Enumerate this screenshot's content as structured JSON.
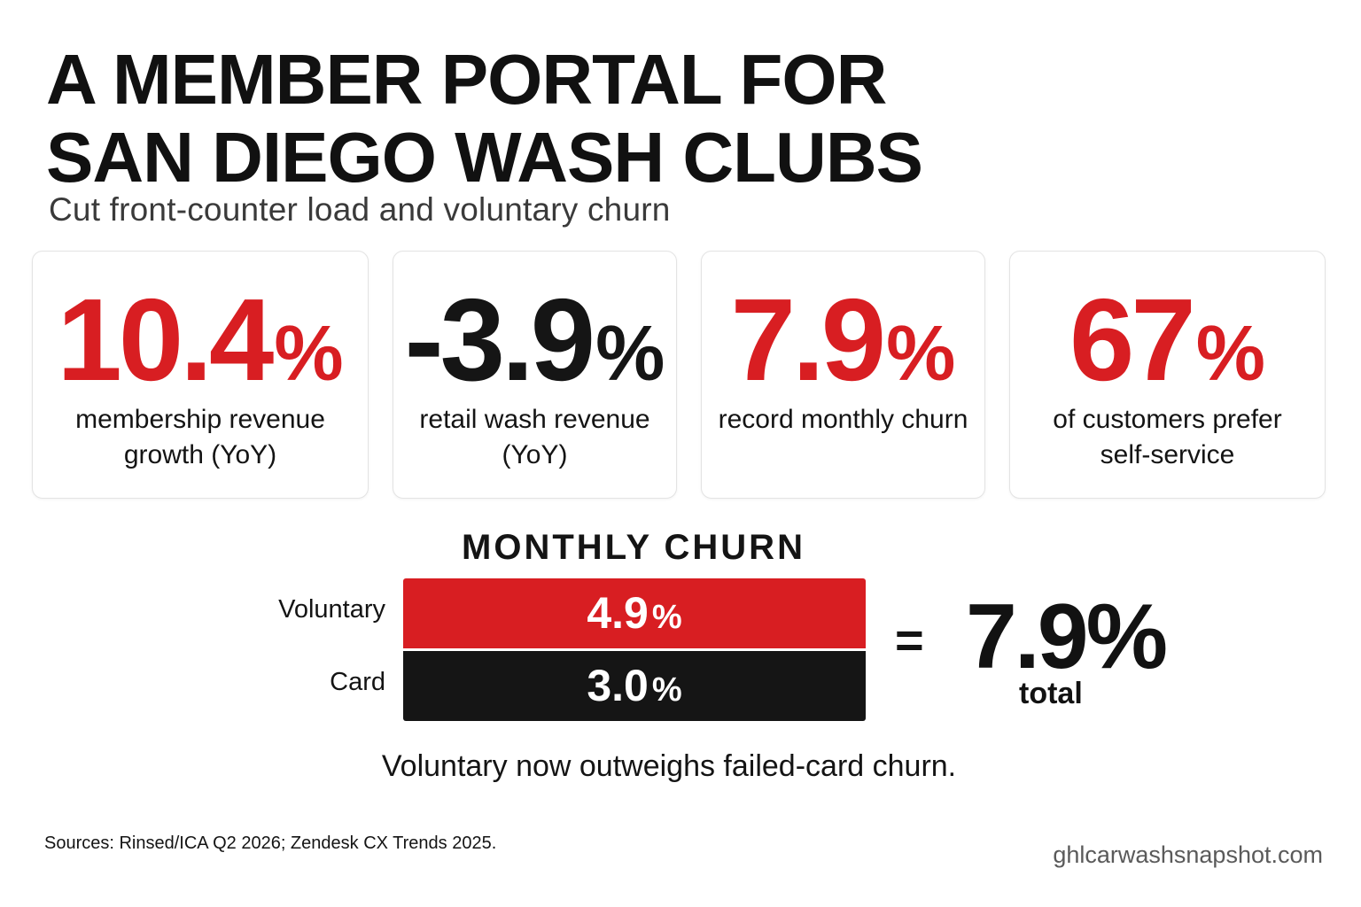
{
  "title_lines": [
    "A MEMBER PORTAL FOR",
    "SAN DIEGO WASH CLUBS"
  ],
  "subtitle": "Cut front-counter load and voluntary churn",
  "stats": [
    {
      "value": "10.4",
      "unit": "%",
      "label_lines": [
        "membership revenue",
        "growth (YoY)"
      ],
      "color": "#d81e22"
    },
    {
      "value": "-3.9",
      "unit": "%",
      "label_lines": [
        "retail wash revenue",
        "(YoY)"
      ],
      "color": "#151515"
    },
    {
      "value": "7.9",
      "unit": "%",
      "label_lines": [
        "record monthly churn",
        ""
      ],
      "color": "#d81e22"
    },
    {
      "value": "67",
      "unit": "%",
      "label_lines": [
        "of customers prefer",
        "self-service"
      ],
      "color": "#d81e22"
    }
  ],
  "churn": {
    "title": "MONTHLY CHURN",
    "rows": [
      {
        "label": "Voluntary",
        "value": "4.9",
        "unit": "%",
        "color": "#d81e22"
      },
      {
        "label": "Card",
        "value": "3.0",
        "unit": "%",
        "color": "#151515"
      }
    ],
    "equals": "=",
    "total_value": "7.9%",
    "total_label": "total"
  },
  "takeaway": "Voluntary now outweighs failed-card churn.",
  "sources": "Sources: Rinsed/ICA Q2 2026; Zendesk CX Trends 2025.",
  "site": "ghlcarwashsnapshot.com"
}
